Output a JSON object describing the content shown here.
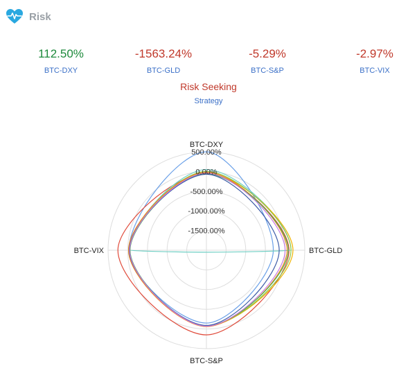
{
  "header": {
    "title": "Risk",
    "icon": "heart-pulse-icon",
    "icon_color": "#29a8e0"
  },
  "metrics": [
    {
      "value": "112.50%",
      "label": "BTC-DXY",
      "color": "#1e8a3c"
    },
    {
      "value": "-1563.24%",
      "label": "BTC-GLD",
      "color": "#c0392b"
    },
    {
      "value": "-5.29%",
      "label": "BTC-S&P",
      "color": "#c0392b"
    },
    {
      "value": "-2.97%",
      "label": "BTC-VIX",
      "color": "#c0392b"
    }
  ],
  "strategy": {
    "value": "Risk Seeking",
    "label": "Strategy"
  },
  "chart_data": {
    "type": "radar",
    "axes": [
      "BTC-DXY",
      "BTC-GLD",
      "BTC-S&P",
      "BTC-VIX"
    ],
    "radial_ticks": [
      "500.00%",
      "0.00%",
      "-500.00%",
      "-1000.00%",
      "-1500.00%"
    ],
    "rlim": [
      -2000,
      500
    ],
    "grid": true,
    "series": [
      {
        "color": "#6aa0e8",
        "values": [
          500,
          -300,
          -150,
          -30
        ]
      },
      {
        "color": "#e04a3a",
        "values": [
          -50,
          100,
          150,
          250
        ]
      },
      {
        "color": "#6fcfc4",
        "values": [
          50,
          150,
          -1950,
          -50
        ]
      },
      {
        "color": "#f0b400",
        "values": [
          -30,
          200,
          -70,
          -40
        ]
      },
      {
        "color": "#8bc34a",
        "values": [
          0,
          150,
          -70,
          -30
        ]
      },
      {
        "color": "#f08a24",
        "values": [
          -20,
          50,
          -60,
          -20
        ]
      },
      {
        "color": "#4caf50",
        "values": [
          -60,
          80,
          -80,
          -60
        ]
      },
      {
        "color": "#3d5ca8",
        "values": [
          -70,
          -150,
          -90,
          -40
        ]
      },
      {
        "color": "#c77be0",
        "values": [
          -40,
          0,
          -70,
          -50
        ]
      }
    ]
  }
}
